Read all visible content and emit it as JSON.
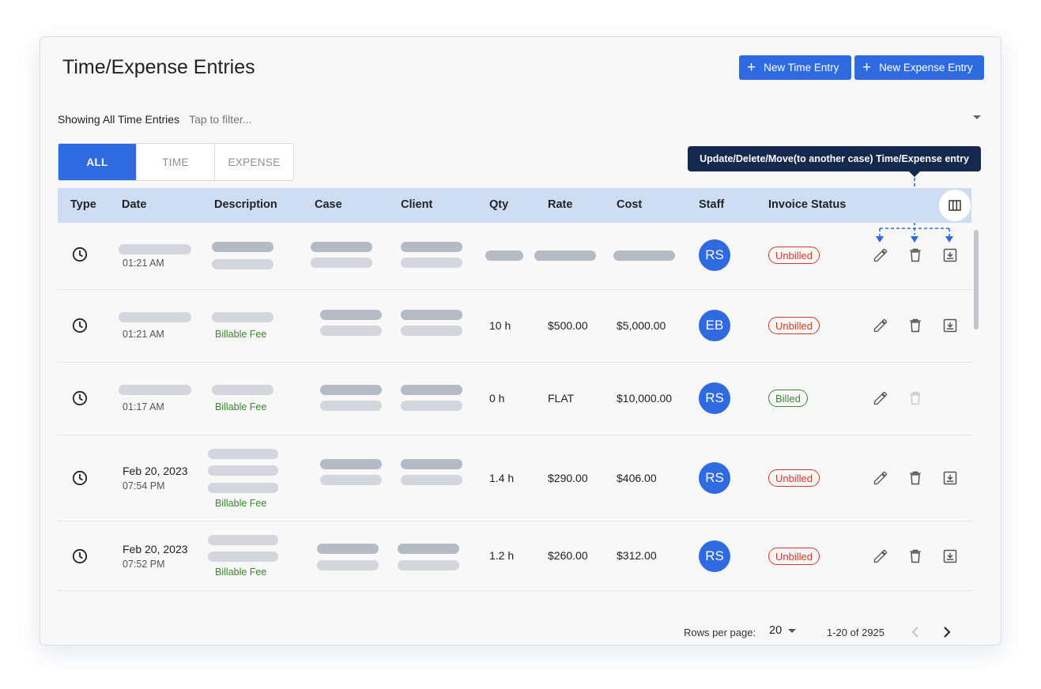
{
  "header": {
    "title": "Time/Expense Entries",
    "new_time_label": "New Time Entry",
    "new_expense_label": "New Expense Entry"
  },
  "filter": {
    "label": "Showing All Time Entries",
    "placeholder": "Tap to filter..."
  },
  "tabs": [
    {
      "label": "ALL",
      "active": true
    },
    {
      "label": "TIME",
      "active": false
    },
    {
      "label": "EXPENSE",
      "active": false
    }
  ],
  "tooltip": "Update/Delete/Move(to another case) Time/Expense entry",
  "columns": [
    "Type",
    "Date",
    "Description",
    "Case",
    "Client",
    "Qty",
    "Rate",
    "Cost",
    "Staff",
    "Invoice Status"
  ],
  "rows": [
    {
      "type_icon": "clock-icon",
      "date": "",
      "time": "01:21 AM",
      "description_tag": "",
      "qty": "",
      "rate": "",
      "cost": "",
      "staff": "RS",
      "status": "Unbilled",
      "download": true
    },
    {
      "type_icon": "clock-icon",
      "date": "",
      "time": "01:21 AM",
      "description_tag": "Billable Fee",
      "qty": "10 h",
      "rate": "$500.00",
      "cost": "$5,000.00",
      "staff": "EB",
      "status": "Unbilled",
      "download": true
    },
    {
      "type_icon": "clock-icon",
      "date": "",
      "time": "01:17 AM",
      "description_tag": "Billable Fee",
      "qty": "0 h",
      "rate": "FLAT",
      "cost": "$10,000.00",
      "staff": "RS",
      "status": "Billed",
      "download": false
    },
    {
      "type_icon": "clock-icon",
      "date": "Feb 20, 2023",
      "time": "07:54 PM",
      "description_tag": "Billable Fee",
      "qty": "1.4 h",
      "rate": "$290.00",
      "cost": "$406.00",
      "staff": "RS",
      "status": "Unbilled",
      "download": true
    },
    {
      "type_icon": "clock-icon",
      "date": "Feb 20, 2023",
      "time": "07:52 PM",
      "description_tag": "Billable Fee",
      "qty": "1.2 h",
      "rate": "$260.00",
      "cost": "$312.00",
      "staff": "RS",
      "status": "Unbilled",
      "download": true
    }
  ],
  "pagination": {
    "rows_per_page_label": "Rows per page:",
    "rows_per_page": "20",
    "range": "1-20 of 2925"
  },
  "colors": {
    "primary": "#2f6ae0",
    "header_bg": "#cfddf3",
    "tooltip_bg": "#15284e",
    "unbilled": "#d33a2c",
    "billed": "#3a8a2c"
  }
}
